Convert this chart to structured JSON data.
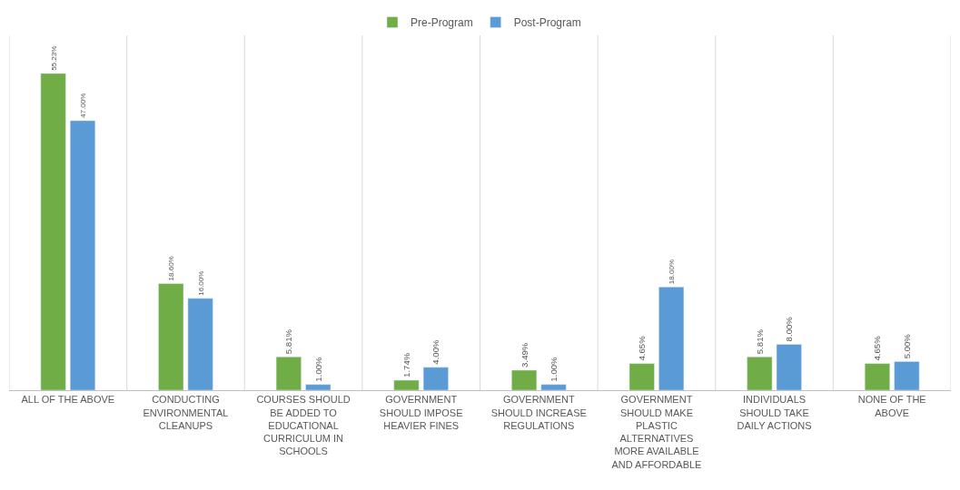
{
  "chart_data": {
    "type": "bar",
    "categories": [
      "ALL OF THE ABOVE",
      "CONDUCTING ENVIRONMENTAL CLEANUPS",
      "COURSES SHOULD BE ADDED TO EDUCATIONAL CURRICULUM IN SCHOOLS",
      "GOVERNMENT SHOULD IMPOSE HEAVIER FINES",
      "GOVERNMENT SHOULD INCREASE REGULATIONS",
      "GOVERNMENT SHOULD MAKE PLASTIC ALTERNATIVES MORE AVAILABLE AND AFFORDABLE",
      "INDIVIDUALS SHOULD TAKE DAILY ACTIONS",
      "NONE OF THE ABOVE"
    ],
    "series": [
      {
        "name": "Pre-Program",
        "color": "#70ad47",
        "values": [
          55.23,
          18.6,
          5.81,
          1.74,
          3.49,
          4.65,
          5.81,
          4.65
        ],
        "value_labels": [
          "55.23%",
          "18.60%",
          "5.81%",
          "1.74%",
          "3.49%",
          "4.65%",
          "5.81%",
          "4.65%"
        ]
      },
      {
        "name": "Post-Program",
        "color": "#5b9bd5",
        "values": [
          47.0,
          16.0,
          1.0,
          4.0,
          1.0,
          18.0,
          8.0,
          5.0
        ],
        "value_labels": [
          "47.00%",
          "16.00%",
          "1.00%",
          "4.00%",
          "1.00%",
          "18.00%",
          "8.00%",
          "5.00%"
        ]
      }
    ],
    "grid": "x",
    "legend": "top"
  }
}
